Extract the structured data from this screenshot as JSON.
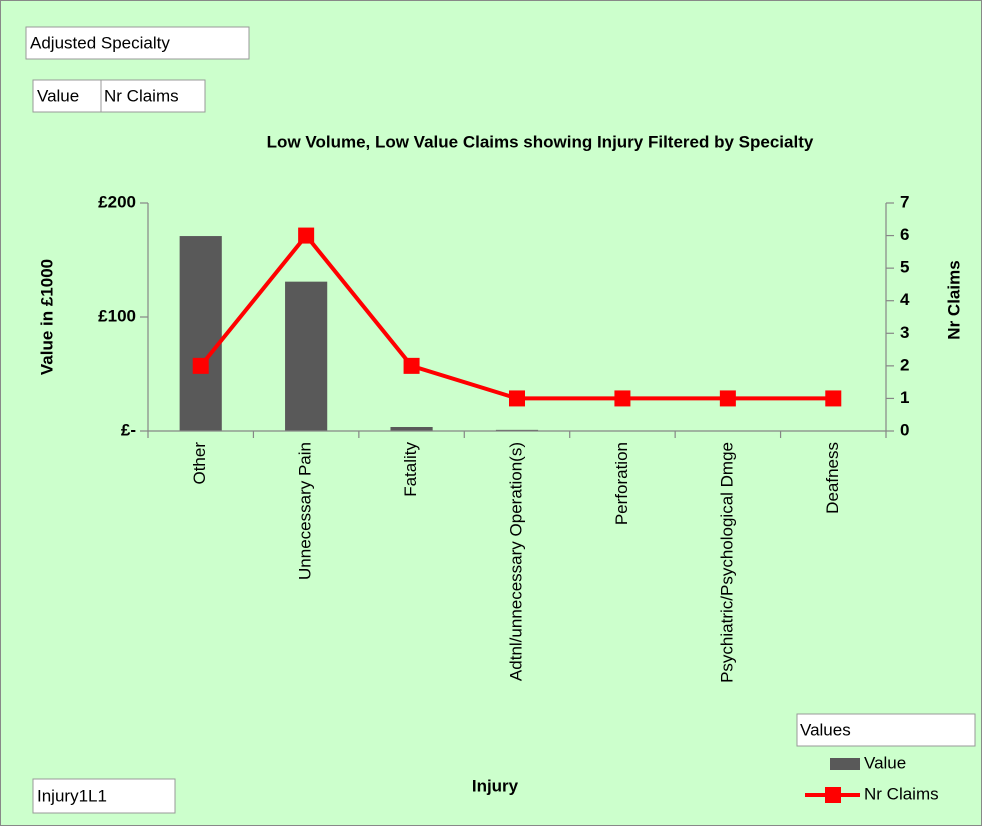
{
  "chart_data": {
    "type": "bar-line",
    "title": "Low Volume, Low Value Claims showing Injury Filtered by Specialty",
    "filter_field": "Adjusted Specialty",
    "data_fields": [
      "Value",
      "Nr Claims"
    ],
    "axis_field": "Injury1L1",
    "legend_title": "Values",
    "x_label": "Injury",
    "y_label": "Value in £1000",
    "y2_label": "Nr Claims",
    "categories": [
      "Other",
      "Unnecessary Pain",
      "Fatality",
      "Adtnl/unnecessary Operation(s)",
      "Perforation",
      "Psychiatric/Psychological Dmge",
      "Deafness"
    ],
    "series": [
      {
        "name": "Value",
        "kind": "bar",
        "color": "#595959",
        "values": [
          171,
          131,
          3.5,
          1,
          0,
          0,
          0
        ]
      },
      {
        "name": "Nr Claims",
        "kind": "line",
        "axis": "y2",
        "color": "#ff0000",
        "values": [
          2,
          6,
          2,
          1,
          1,
          1,
          1
        ]
      }
    ],
    "ylim": [
      0,
      200
    ],
    "yticks": [
      {
        "value": 0,
        "label": "£-"
      },
      {
        "value": 100,
        "label": "£100"
      },
      {
        "value": 200,
        "label": "£200"
      }
    ],
    "y2lim": [
      0,
      7
    ],
    "y2ticks": [
      0,
      1,
      2,
      3,
      4,
      5,
      6,
      7
    ],
    "grid": false
  }
}
